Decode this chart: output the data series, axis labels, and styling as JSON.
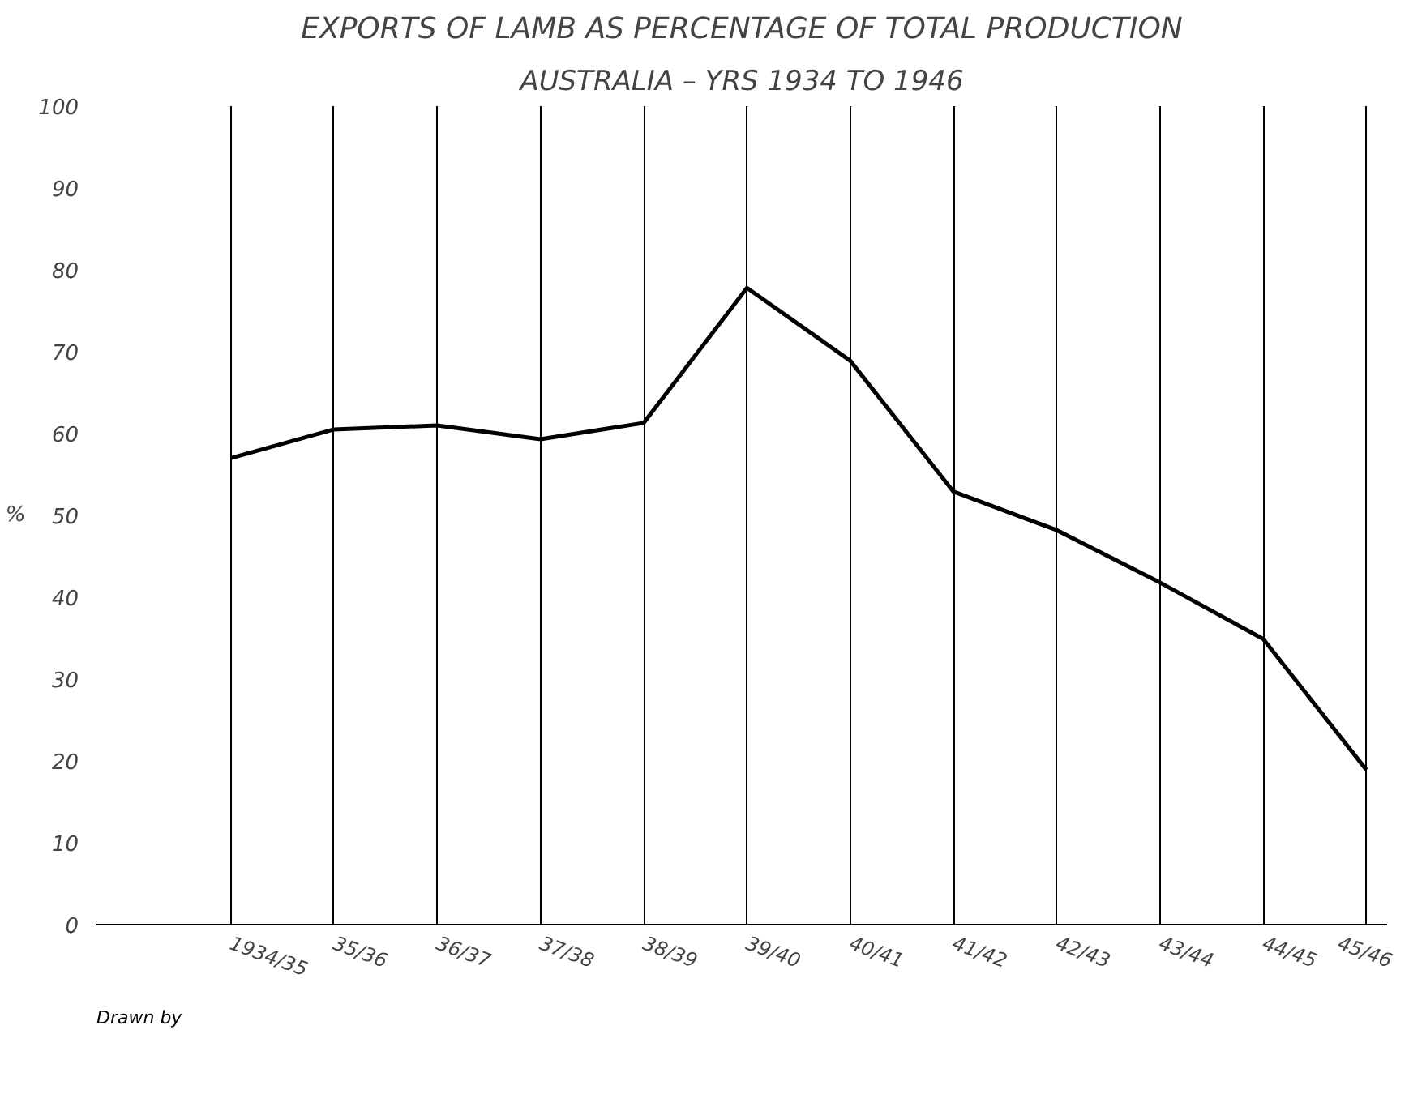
{
  "chart_data": {
    "type": "line",
    "title": "EXPORTS OF LAMB AS PERCENTAGE OF TOTAL PRODUCTION",
    "subtitle": "AUSTRALIA – YRS 1934 TO 1946",
    "ylabel": "%",
    "categories": [
      "1934/35",
      "35/36",
      "36/37",
      "37/38",
      "38/39",
      "39/40",
      "40/41",
      "41/42",
      "42/43",
      "43/44",
      "44/45",
      "45/46"
    ],
    "series": [
      {
        "color": "#000000",
        "values": [
          57,
          60.5,
          61,
          59.3,
          61.3,
          77.8,
          68.9,
          52.9,
          48.2,
          41.8,
          34.9,
          18.9
        ]
      }
    ],
    "ylim": [
      0,
      100
    ],
    "yticks": [
      0,
      10,
      20,
      30,
      40,
      50,
      60,
      70,
      80,
      90,
      100
    ],
    "grid": "x",
    "marker": "none",
    "line_style": "solid",
    "annotations": [
      "Drawn by"
    ]
  }
}
